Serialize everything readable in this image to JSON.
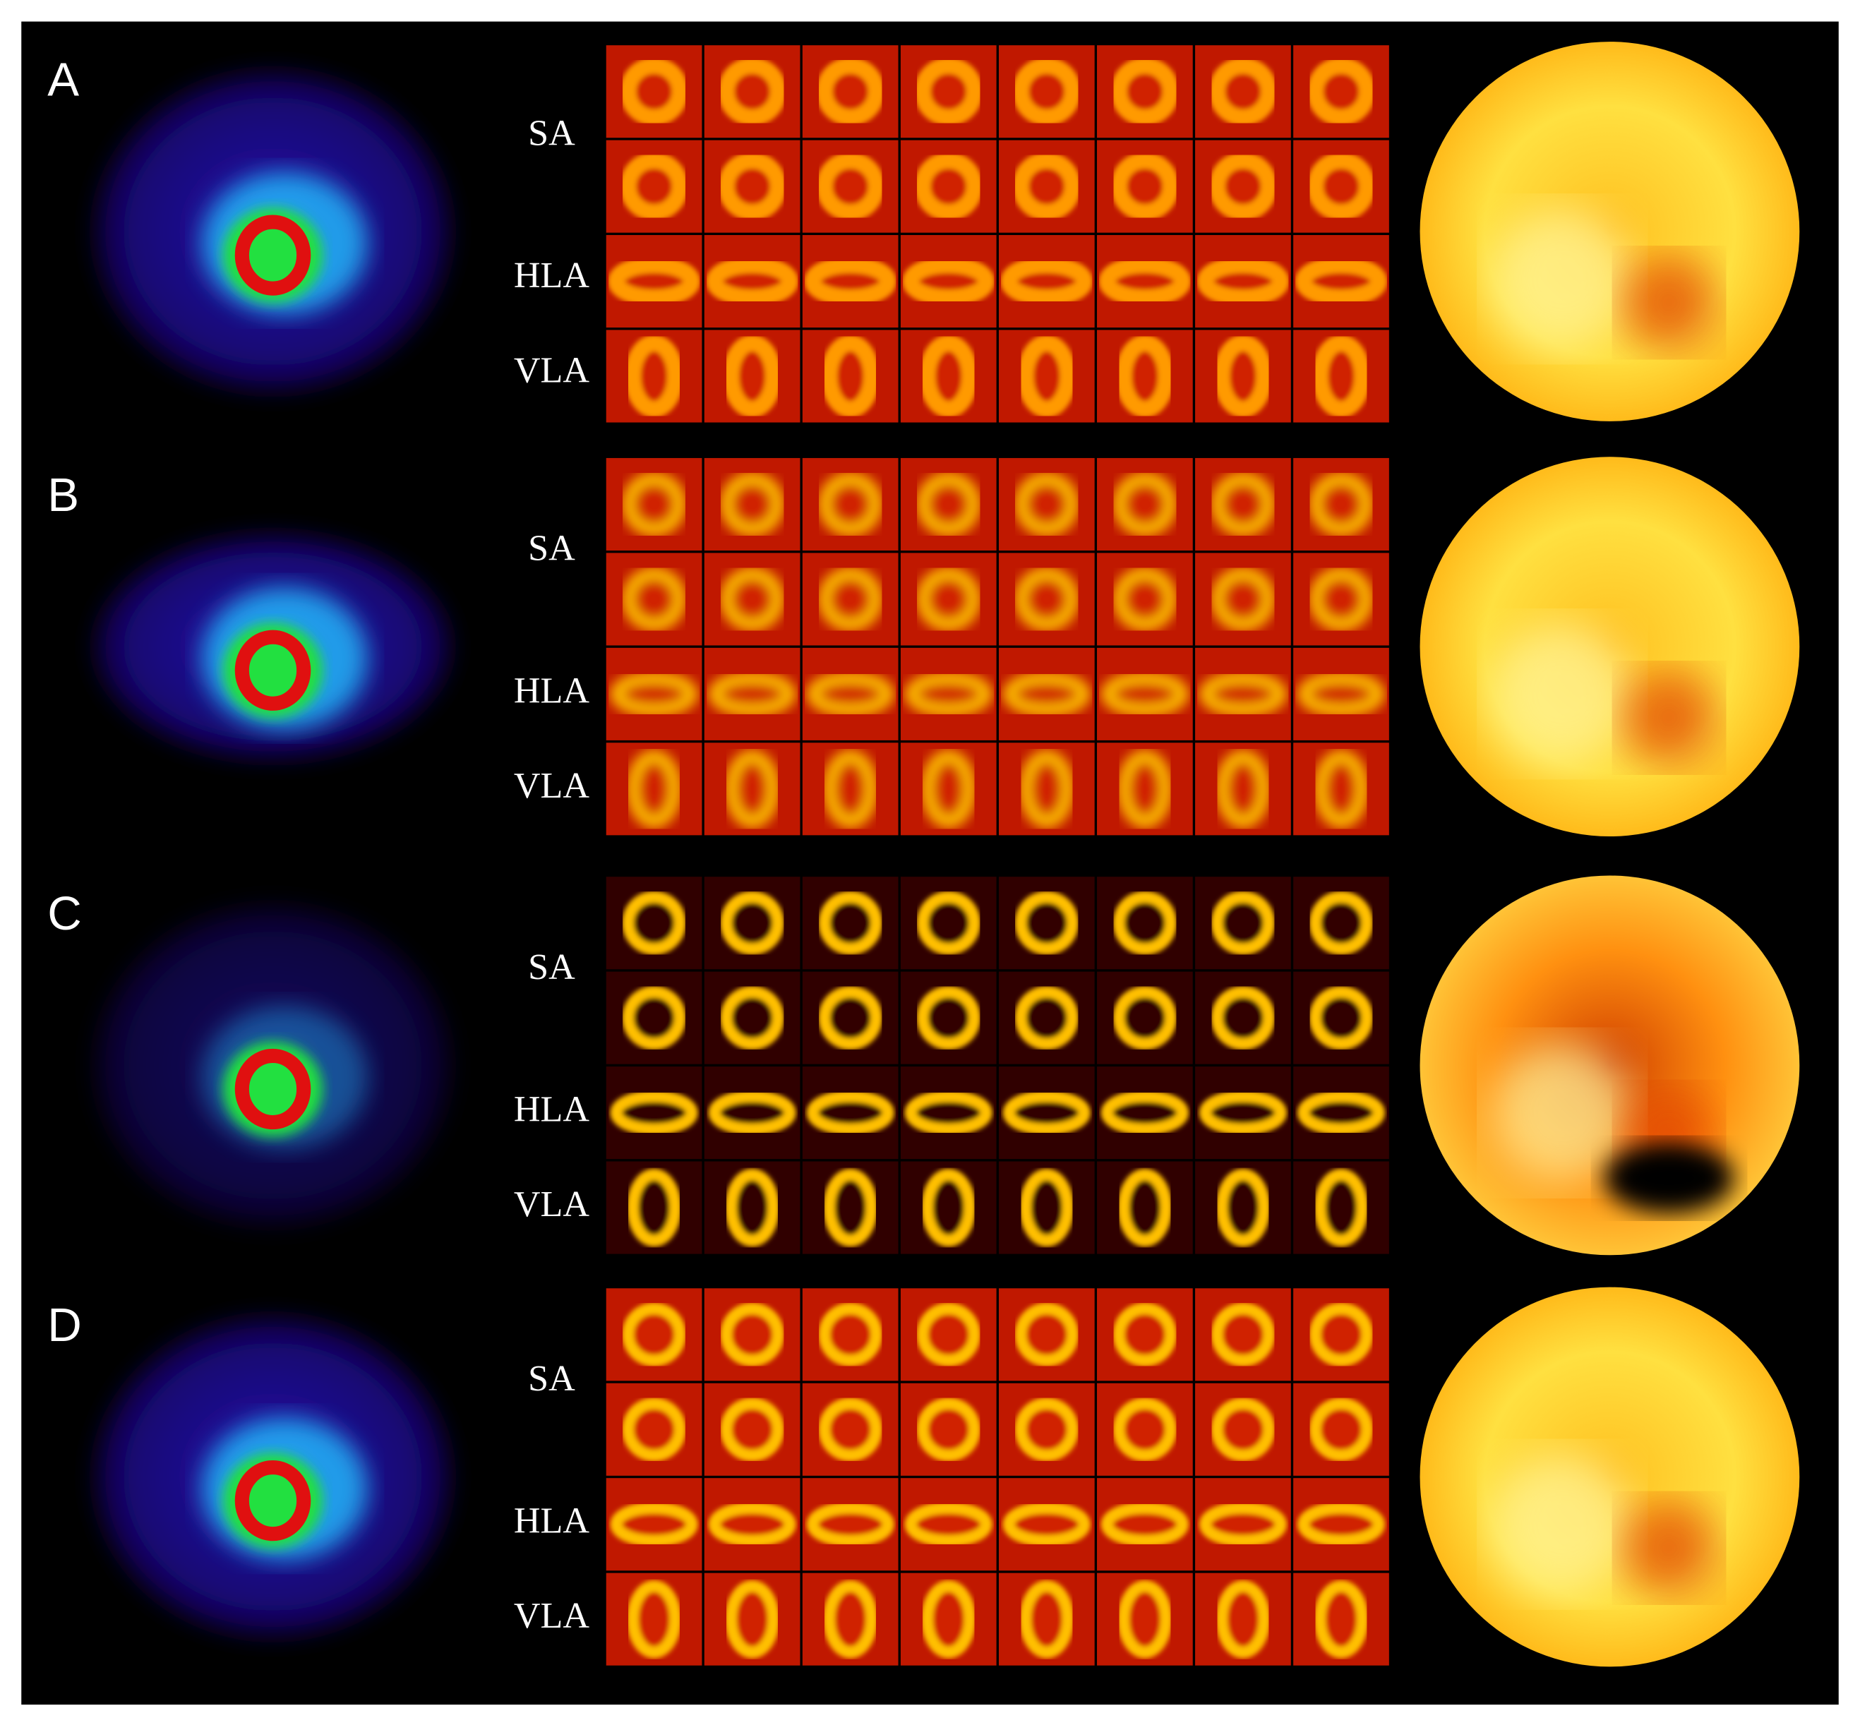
{
  "panels": [
    {
      "label": "A",
      "views": [
        "SA",
        "HLA",
        "VLA"
      ]
    },
    {
      "label": "B",
      "views": [
        "SA",
        "HLA",
        "VLA"
      ]
    },
    {
      "label": "C",
      "views": [
        "SA",
        "HLA",
        "VLA"
      ]
    },
    {
      "label": "D",
      "views": [
        "SA",
        "HLA",
        "VLA"
      ]
    }
  ]
}
